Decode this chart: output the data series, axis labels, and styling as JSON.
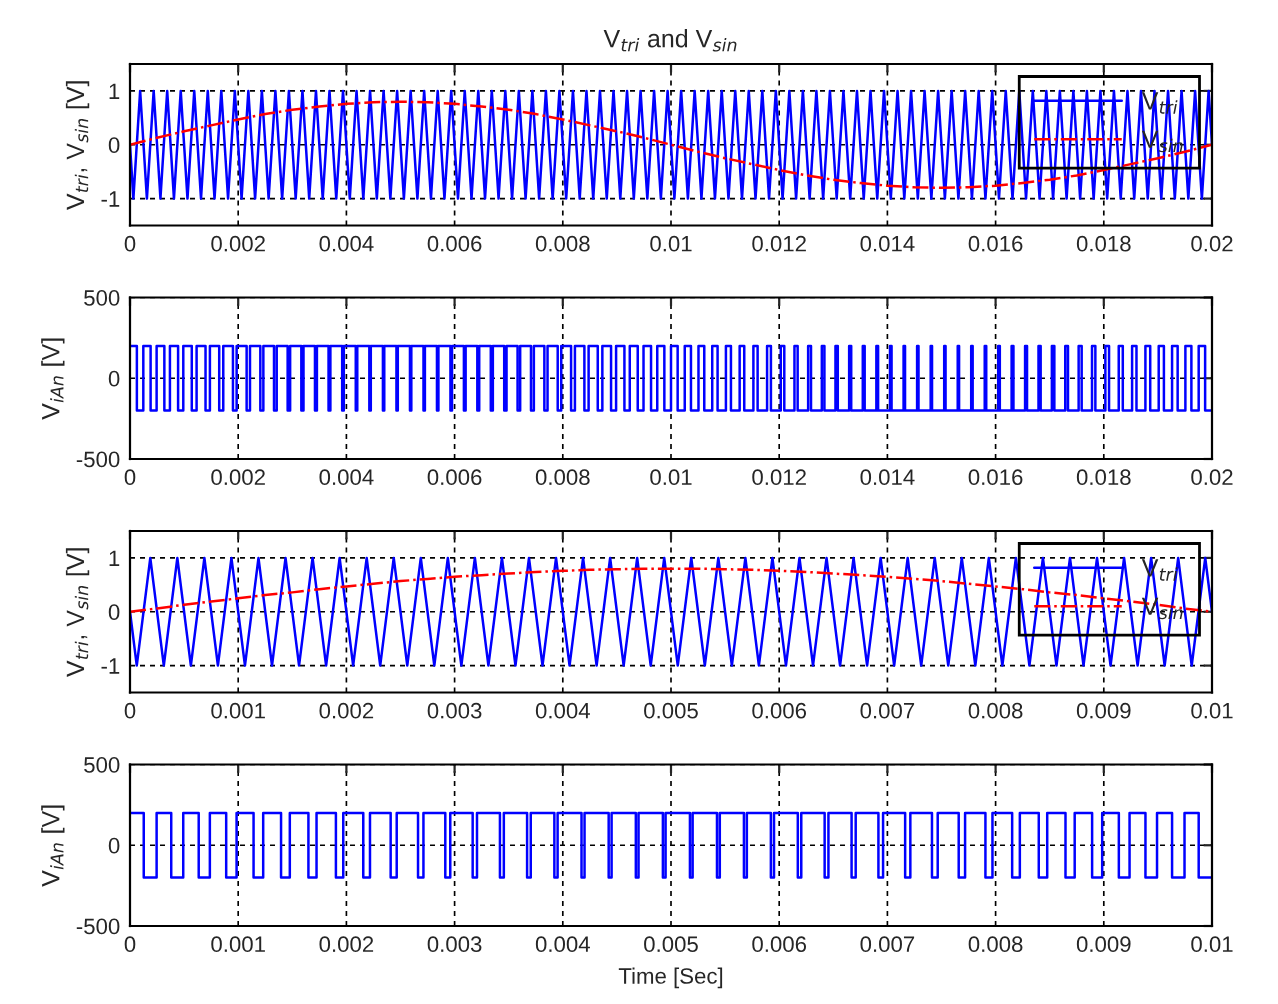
{
  "chart_data": [
    {
      "type": "line",
      "title": "V$_{tri}$ and V$_{sin}$",
      "ylabel": "V$_{tri}$, V$_{sin}$ [V]",
      "xlim": [
        0,
        0.02
      ],
      "xticks": [
        0,
        0.002,
        0.004,
        0.006,
        0.008,
        0.01,
        0.012,
        0.014,
        0.016,
        0.018,
        0.02
      ],
      "ylim": [
        -1.5,
        1.5
      ],
      "yticks": [
        -1,
        0,
        1
      ],
      "grid": true,
      "legend": "top right",
      "series": [
        {
          "name": "V$_{tri}$",
          "color": "#0000ff",
          "line_style": "solid",
          "x": [
            0,
            6.25e-05,
            0.0001875,
            0.0003125,
            0.0004375,
            0.0005625,
            0.0006875,
            0.0008125,
            0.0009375,
            0.0010625,
            0.0011875,
            0.0013125,
            0.0014375,
            0.0015625,
            0.0016875,
            0.0018125,
            0.0019375,
            0.0020625,
            0.0021875,
            0.0023125,
            0.0024375,
            0.0025625,
            0.0026875,
            0.0028125,
            0.0029375,
            0.0030625,
            0.0031875,
            0.0033125,
            0.0034375,
            0.0035625,
            0.0036875,
            0.0038125,
            0.0039375,
            0.0040625,
            0.0041875,
            0.0043125,
            0.0044375,
            0.0045625,
            0.0046875,
            0.0048125,
            0.0049375,
            0.0050625,
            0.0051875,
            0.0053125,
            0.0054375,
            0.0055625,
            0.0056875,
            0.0058125,
            0.0059375,
            0.0060625,
            0.0061875,
            0.0063125,
            0.0064375,
            0.0065625,
            0.0066875,
            0.0068125,
            0.0069375,
            0.0070625,
            0.0071875,
            0.0073125,
            0.0074375,
            0.0075625,
            0.0076875,
            0.0078125,
            0.0079375,
            0.0080625,
            0.0081875,
            0.0083125,
            0.0084375,
            0.0085625,
            0.0086875,
            0.0088125,
            0.0089375,
            0.0090625,
            0.0091875,
            0.0093125,
            0.0094375,
            0.0095625,
            0.0096875,
            0.0098125,
            0.0099375,
            0.0100625,
            0.0101875,
            0.0103125,
            0.0104375,
            0.0105625,
            0.0106875,
            0.0108125,
            0.0109375,
            0.0110625,
            0.0111875,
            0.0113125,
            0.0114375,
            0.0115625,
            0.0116875,
            0.0118125,
            0.0119375,
            0.0120625,
            0.0121875,
            0.0123125,
            0.0124375,
            0.0125625,
            0.0126875,
            0.0128125,
            0.0129375,
            0.0130625,
            0.0131875,
            0.0133125,
            0.0134375,
            0.0135625,
            0.0136875,
            0.0138125,
            0.0139375,
            0.0140625,
            0.0141875,
            0.0143125,
            0.0144375,
            0.0145625,
            0.0146875,
            0.0148125,
            0.0149375,
            0.0150625,
            0.0151875,
            0.0153125,
            0.0154375,
            0.0155625,
            0.0156875,
            0.0158125,
            0.0159375,
            0.0160625,
            0.0161875,
            0.0163125,
            0.0164375,
            0.0165625,
            0.0166875,
            0.0168125,
            0.0169375,
            0.0170625,
            0.0171875,
            0.0173125,
            0.0174375,
            0.0175625,
            0.0176875,
            0.0178125,
            0.0179375,
            0.0180625,
            0.0181875,
            0.0183125,
            0.0184375,
            0.0185625,
            0.0186875,
            0.0188125,
            0.0189375,
            0.0190625,
            0.0191875,
            0.0193125,
            0.0194375,
            0.0195625,
            0.0196875,
            0.0198125,
            0.0199375,
            0.02
          ],
          "values": [
            0,
            -1,
            1,
            -1,
            1,
            -1,
            1,
            -1,
            1,
            -1,
            1,
            -1,
            1,
            -1,
            1,
            -1,
            1,
            -1,
            1,
            -1,
            1,
            -1,
            1,
            -1,
            1,
            -1,
            1,
            -1,
            1,
            -1,
            1,
            -1,
            1,
            -1,
            1,
            -1,
            1,
            -1,
            1,
            -1,
            1,
            -1,
            1,
            -1,
            1,
            -1,
            1,
            -1,
            1,
            -1,
            1,
            -1,
            1,
            -1,
            1,
            -1,
            1,
            -1,
            1,
            -1,
            1,
            -1,
            1,
            -1,
            1,
            -1,
            1,
            -1,
            1,
            -1,
            1,
            -1,
            1,
            -1,
            1,
            -1,
            1,
            -1,
            1,
            -1,
            1,
            -1,
            1,
            -1,
            1,
            -1,
            1,
            -1,
            1,
            -1,
            1,
            -1,
            1,
            -1,
            1,
            -1,
            1,
            -1,
            1,
            -1,
            1,
            -1,
            1,
            -1,
            1,
            -1,
            1,
            -1,
            1,
            -1,
            1,
            -1,
            1,
            -1,
            1,
            -1,
            1,
            -1,
            1,
            -1,
            1,
            -1,
            1,
            -1,
            1,
            -1,
            1,
            -1,
            1,
            -1,
            1,
            -1,
            1,
            -1,
            1,
            -1,
            1,
            -1,
            1,
            -1,
            1,
            -1,
            1,
            -1,
            1,
            -1,
            1,
            -1,
            1,
            -1,
            1,
            -1,
            1,
            -1,
            1,
            -1,
            1,
            -1,
            1,
            -1,
            1,
            0
          ]
        },
        {
          "name": "V$_{sin}$",
          "color": "#ff0000",
          "line_style": "dashdot",
          "x": [
            0,
            0.0005,
            0.001,
            0.0015,
            0.002,
            0.0025,
            0.003,
            0.0035,
            0.004,
            0.0045,
            0.005,
            0.0055,
            0.006,
            0.0065,
            0.007,
            0.0075,
            0.008,
            0.0085,
            0.009,
            0.0095,
            0.01,
            0.0105,
            0.011,
            0.0115,
            0.012,
            0.0125,
            0.013,
            0.0135,
            0.014,
            0.0145,
            0.015,
            0.0155,
            0.016,
            0.0165,
            0.017,
            0.0175,
            0.018,
            0.0185,
            0.019,
            0.0195,
            0.02
          ],
          "values": [
            0,
            0.13,
            0.25,
            0.36,
            0.47,
            0.57,
            0.65,
            0.71,
            0.76,
            0.79,
            0.8,
            0.79,
            0.76,
            0.71,
            0.65,
            0.57,
            0.47,
            0.36,
            0.25,
            0.13,
            0,
            -0.13,
            -0.25,
            -0.36,
            -0.47,
            -0.57,
            -0.65,
            -0.71,
            -0.76,
            -0.79,
            -0.8,
            -0.79,
            -0.76,
            -0.71,
            -0.65,
            -0.57,
            -0.47,
            -0.36,
            -0.25,
            -0.13,
            0
          ]
        }
      ]
    },
    {
      "type": "step",
      "ylabel": "V$_{iAn}$ [V]",
      "xlim": [
        0,
        0.02
      ],
      "xticks": [
        0,
        0.002,
        0.004,
        0.006,
        0.008,
        0.01,
        0.012,
        0.014,
        0.016,
        0.018,
        0.02
      ],
      "ylim": [
        -500,
        500
      ],
      "yticks": [
        -500,
        0,
        500
      ],
      "grid": true,
      "series": [
        {
          "color": "#0000ff",
          "x": [
            0,
            0.000127,
            0.000246,
            0.000381,
            0.000492,
            0.000635,
            0.000738,
            0.000889,
            0.000985,
            0.001142,
            0.001231,
            0.001396,
            0.001477,
            0.001649,
            0.001724,
            0.001903,
            0.001971,
            0.002156,
            0.002218,
            0.002409,
            0.002465,
            0.002662,
            0.002712,
            0.002914,
            0.00296,
            0.003167,
            0.003207,
            0.003419,
            0.003455,
            0.00367,
            0.003704,
            0.003922,
            0.003952,
            0.004173,
            0.004201,
            0.004424,
            0.004451,
            0.004675,
            0.0047,
            0.004925,
            0.00495,
            0.005175,
            0.0052,
            0.005425,
            0.005451,
            0.005674,
            0.005701,
            0.005923,
            0.005952,
            0.006172,
            0.006204,
            0.00642,
            0.006455,
            0.006669,
            0.006707,
            0.006917,
            0.00696,
            0.007164,
            0.007212,
            0.007412,
            0.007465,
            0.007659,
            0.007718,
            0.007906,
            0.007971,
            0.008153,
            0.008224,
            0.008399,
            0.008477,
            0.008646,
            0.008731,
            0.008892,
            0.008985,
            0.009139,
            0.009238,
            0.009385,
            0.009492,
            0.009631,
            0.009746,
            0.009877,
            0.01,
            0.010123,
            0.010254,
            0.010369,
            0.010508,
            0.010615,
            0.010762,
            0.010861,
            0.011015,
            0.011108,
            0.011269,
            0.011354,
            0.011523,
            0.011601,
            0.011776,
            0.011847,
            0.012029,
            0.012094,
            0.012282,
            0.012341,
            0.012535,
            0.012588,
            0.012788,
            0.012836,
            0.01304,
            0.013083,
            0.013293,
            0.013331,
            0.013545,
            0.01358,
            0.013796,
            0.013828,
            0.014048,
            0.014077,
            0.014299,
            0.014326,
            0.014549,
            0.014575,
            0.0148,
            0.014825,
            0.01505,
            0.015075,
            0.0153,
            0.015325,
            0.015549,
            0.015576,
            0.015799,
            0.015827,
            0.016048,
            0.016078,
            0.016296,
            0.01633,
            0.016545,
            0.016581,
            0.016793,
            0.016833,
            0.01704,
            0.017086,
            0.017288,
            0.017338,
            0.017535,
            0.017591,
            0.017782,
            0.017844,
            0.018029,
            0.018097,
            0.018276,
            0.018351,
            0.018523,
            0.018604,
            0.018769,
            0.018858,
            0.019015,
            0.019111,
            0.019262,
            0.019365,
            0.019508,
            0.019619,
            0.019754,
            0.019873,
            0.02
          ],
          "values": [
            200,
            -200,
            200,
            -200,
            200,
            -200,
            200,
            -200,
            200,
            -200,
            200,
            -200,
            200,
            -200,
            200,
            -200,
            200,
            -200,
            200,
            -200,
            200,
            -200,
            200,
            -200,
            200,
            -200,
            200,
            -200,
            200,
            -200,
            200,
            -200,
            200,
            -200,
            200,
            -200,
            200,
            -200,
            200,
            -200,
            200,
            -200,
            200,
            -200,
            200,
            -200,
            200,
            -200,
            200,
            -200,
            200,
            -200,
            200,
            -200,
            200,
            -200,
            200,
            -200,
            200,
            -200,
            200,
            -200,
            200,
            -200,
            200,
            -200,
            200,
            -200,
            200,
            -200,
            200,
            -200,
            200,
            -200,
            200,
            -200,
            200,
            -200,
            200,
            -200,
            200,
            -200,
            200,
            -200,
            200,
            -200,
            200,
            -200,
            200,
            -200,
            200,
            -200,
            200,
            -200,
            200,
            -200,
            200,
            -200,
            200,
            -200,
            200,
            -200,
            200,
            -200,
            200,
            -200,
            200,
            -200,
            200,
            -200,
            200,
            -200,
            200,
            -200,
            200,
            -200,
            200,
            -200,
            200,
            -200,
            200,
            -200,
            200,
            -200,
            200,
            -200,
            200,
            -200,
            200,
            -200,
            200,
            -200,
            200,
            -200,
            200,
            -200,
            200,
            -200,
            200,
            -200,
            200,
            -200,
            200,
            -200,
            200,
            -200,
            200,
            -200,
            200,
            -200,
            200,
            -200,
            200,
            -200,
            200,
            -200,
            200,
            -200,
            200,
            -200,
            -200
          ]
        }
      ]
    },
    {
      "type": "line",
      "ylabel": "V$_{tri}$, V$_{sin}$ [V]",
      "xlim": [
        0,
        0.01
      ],
      "xticks": [
        0,
        0.001,
        0.002,
        0.003,
        0.004,
        0.005,
        0.006,
        0.007,
        0.008,
        0.009,
        0.01
      ],
      "ylim": [
        -1.5,
        1.5
      ],
      "yticks": [
        -1,
        0,
        1
      ],
      "grid": true,
      "legend": "top right",
      "series": [
        {
          "name": "V$_{tri}$",
          "color": "#0000ff",
          "line_style": "solid",
          "x": [
            0,
            6.25e-05,
            0.0001875,
            0.0003125,
            0.0004375,
            0.0005625,
            0.0006875,
            0.0008125,
            0.0009375,
            0.0010625,
            0.0011875,
            0.0013125,
            0.0014375,
            0.0015625,
            0.0016875,
            0.0018125,
            0.0019375,
            0.0020625,
            0.0021875,
            0.0023125,
            0.0024375,
            0.0025625,
            0.0026875,
            0.0028125,
            0.0029375,
            0.0030625,
            0.0031875,
            0.0033125,
            0.0034375,
            0.0035625,
            0.0036875,
            0.0038125,
            0.0039375,
            0.0040625,
            0.0041875,
            0.0043125,
            0.0044375,
            0.0045625,
            0.0046875,
            0.0048125,
            0.0049375,
            0.0050625,
            0.0051875,
            0.0053125,
            0.0054375,
            0.0055625,
            0.0056875,
            0.0058125,
            0.0059375,
            0.0060625,
            0.0061875,
            0.0063125,
            0.0064375,
            0.0065625,
            0.0066875,
            0.0068125,
            0.0069375,
            0.0070625,
            0.0071875,
            0.0073125,
            0.0074375,
            0.0075625,
            0.0076875,
            0.0078125,
            0.0079375,
            0.0080625,
            0.0081875,
            0.0083125,
            0.0084375,
            0.0085625,
            0.0086875,
            0.0088125,
            0.0089375,
            0.0090625,
            0.0091875,
            0.0093125,
            0.0094375,
            0.0095625,
            0.0096875,
            0.0098125,
            0.0099375,
            0.01
          ],
          "values": [
            0,
            -1,
            1,
            -1,
            1,
            -1,
            1,
            -1,
            1,
            -1,
            1,
            -1,
            1,
            -1,
            1,
            -1,
            1,
            -1,
            1,
            -1,
            1,
            -1,
            1,
            -1,
            1,
            -1,
            1,
            -1,
            1,
            -1,
            1,
            -1,
            1,
            -1,
            1,
            -1,
            1,
            -1,
            1,
            -1,
            1,
            -1,
            1,
            -1,
            1,
            -1,
            1,
            -1,
            1,
            -1,
            1,
            -1,
            1,
            -1,
            1,
            -1,
            1,
            -1,
            1,
            -1,
            1,
            -1,
            1,
            -1,
            1,
            -1,
            1,
            -1,
            1,
            -1,
            1,
            -1,
            1,
            -1,
            1,
            -1,
            1,
            -1,
            1,
            -1,
            1,
            0
          ]
        },
        {
          "name": "V$_{sin}$",
          "color": "#ff0000",
          "line_style": "dashdot",
          "x": [
            0,
            0.00025,
            0.0005,
            0.00075,
            0.001,
            0.00125,
            0.0015,
            0.00175,
            0.002,
            0.00225,
            0.0025,
            0.00275,
            0.003,
            0.00325,
            0.0035,
            0.00375,
            0.004,
            0.00425,
            0.0045,
            0.00475,
            0.005,
            0.00525,
            0.0055,
            0.00575,
            0.006,
            0.00625,
            0.0065,
            0.00675,
            0.007,
            0.00725,
            0.0075,
            0.00775,
            0.008,
            0.00825,
            0.0085,
            0.00875,
            0.009,
            0.00925,
            0.0095,
            0.00975,
            0.01
          ],
          "values": [
            0,
            0.06,
            0.13,
            0.19,
            0.25,
            0.31,
            0.36,
            0.42,
            0.47,
            0.52,
            0.57,
            0.61,
            0.65,
            0.68,
            0.71,
            0.74,
            0.76,
            0.78,
            0.79,
            0.8,
            0.8,
            0.8,
            0.79,
            0.78,
            0.76,
            0.74,
            0.71,
            0.68,
            0.65,
            0.61,
            0.57,
            0.52,
            0.47,
            0.42,
            0.36,
            0.31,
            0.25,
            0.19,
            0.13,
            0.06,
            0
          ]
        }
      ]
    },
    {
      "type": "step",
      "ylabel": "V$_{iAn}$ [V]",
      "xlabel": "Time [Sec]",
      "xlim": [
        0,
        0.01
      ],
      "xticks": [
        0,
        0.001,
        0.002,
        0.003,
        0.004,
        0.005,
        0.006,
        0.007,
        0.008,
        0.009,
        0.01
      ],
      "ylim": [
        -500,
        500
      ],
      "yticks": [
        -500,
        0,
        500
      ],
      "grid": true,
      "series": [
        {
          "color": "#0000ff",
          "x": [
            0,
            0.000127,
            0.000246,
            0.000381,
            0.000492,
            0.000635,
            0.000738,
            0.000889,
            0.000985,
            0.001142,
            0.001231,
            0.001396,
            0.001477,
            0.001649,
            0.001724,
            0.001903,
            0.001971,
            0.002156,
            0.002218,
            0.002409,
            0.002465,
            0.002662,
            0.002712,
            0.002914,
            0.00296,
            0.003167,
            0.003207,
            0.003419,
            0.003455,
            0.00367,
            0.003704,
            0.003922,
            0.003952,
            0.004173,
            0.004201,
            0.004424,
            0.004451,
            0.004675,
            0.0047,
            0.004925,
            0.00495,
            0.005175,
            0.0052,
            0.005425,
            0.005451,
            0.005674,
            0.005701,
            0.005923,
            0.005952,
            0.006172,
            0.006204,
            0.00642,
            0.006455,
            0.006669,
            0.006707,
            0.006917,
            0.00696,
            0.007164,
            0.007212,
            0.007412,
            0.007465,
            0.007659,
            0.007718,
            0.007906,
            0.007971,
            0.008153,
            0.008224,
            0.008399,
            0.008477,
            0.008646,
            0.008731,
            0.008892,
            0.008985,
            0.009139,
            0.009238,
            0.009385,
            0.009492,
            0.009631,
            0.009746,
            0.009877,
            0.01
          ],
          "values": [
            200,
            -200,
            200,
            -200,
            200,
            -200,
            200,
            -200,
            200,
            -200,
            200,
            -200,
            200,
            -200,
            200,
            -200,
            200,
            -200,
            200,
            -200,
            200,
            -200,
            200,
            -200,
            200,
            -200,
            200,
            -200,
            200,
            -200,
            200,
            -200,
            200,
            -200,
            200,
            -200,
            200,
            -200,
            200,
            -200,
            200,
            -200,
            200,
            -200,
            200,
            -200,
            200,
            -200,
            200,
            -200,
            200,
            -200,
            200,
            -200,
            200,
            -200,
            200,
            -200,
            200,
            -200,
            200,
            -200,
            200,
            -200,
            200,
            -200,
            200,
            -200,
            200,
            -200,
            200,
            -200,
            200,
            -200,
            200,
            -200,
            200,
            -200,
            200,
            -200,
            -200
          ]
        }
      ]
    }
  ]
}
